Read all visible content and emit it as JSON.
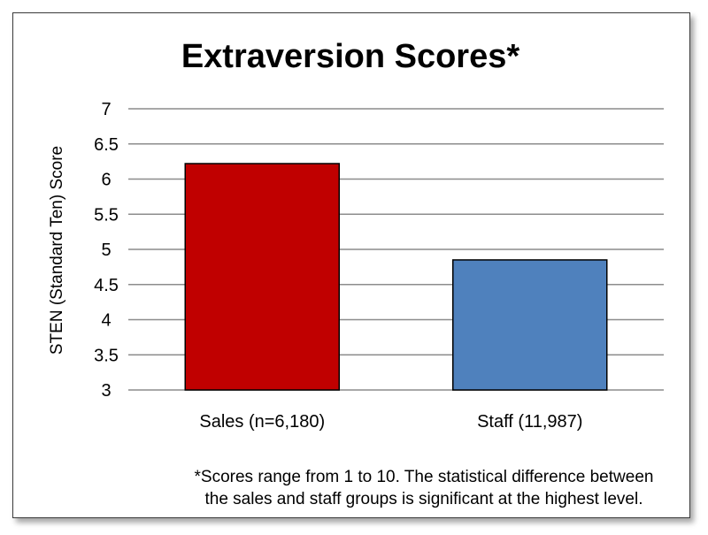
{
  "chart_data": {
    "type": "bar",
    "title": "Extraversion Scores*",
    "ylabel": "STEN (Standard Ten) Score",
    "xlabel": "",
    "categories": [
      "Sales (n=6,180)",
      "Staff (11,987)"
    ],
    "values": [
      6.22,
      4.85
    ],
    "bar_colors": [
      "#c00000",
      "#4f81bd"
    ],
    "ylim": [
      3,
      7
    ],
    "yticks": [
      "3",
      "3.5",
      "4",
      "4.5",
      "5",
      "5.5",
      "6",
      "6.5",
      "7"
    ],
    "grid": true,
    "legend": "none"
  },
  "footnote": {
    "line1": "*Scores range from 1 to 10. The statistical difference between",
    "line2": "the sales and staff groups is significant at the highest level."
  }
}
